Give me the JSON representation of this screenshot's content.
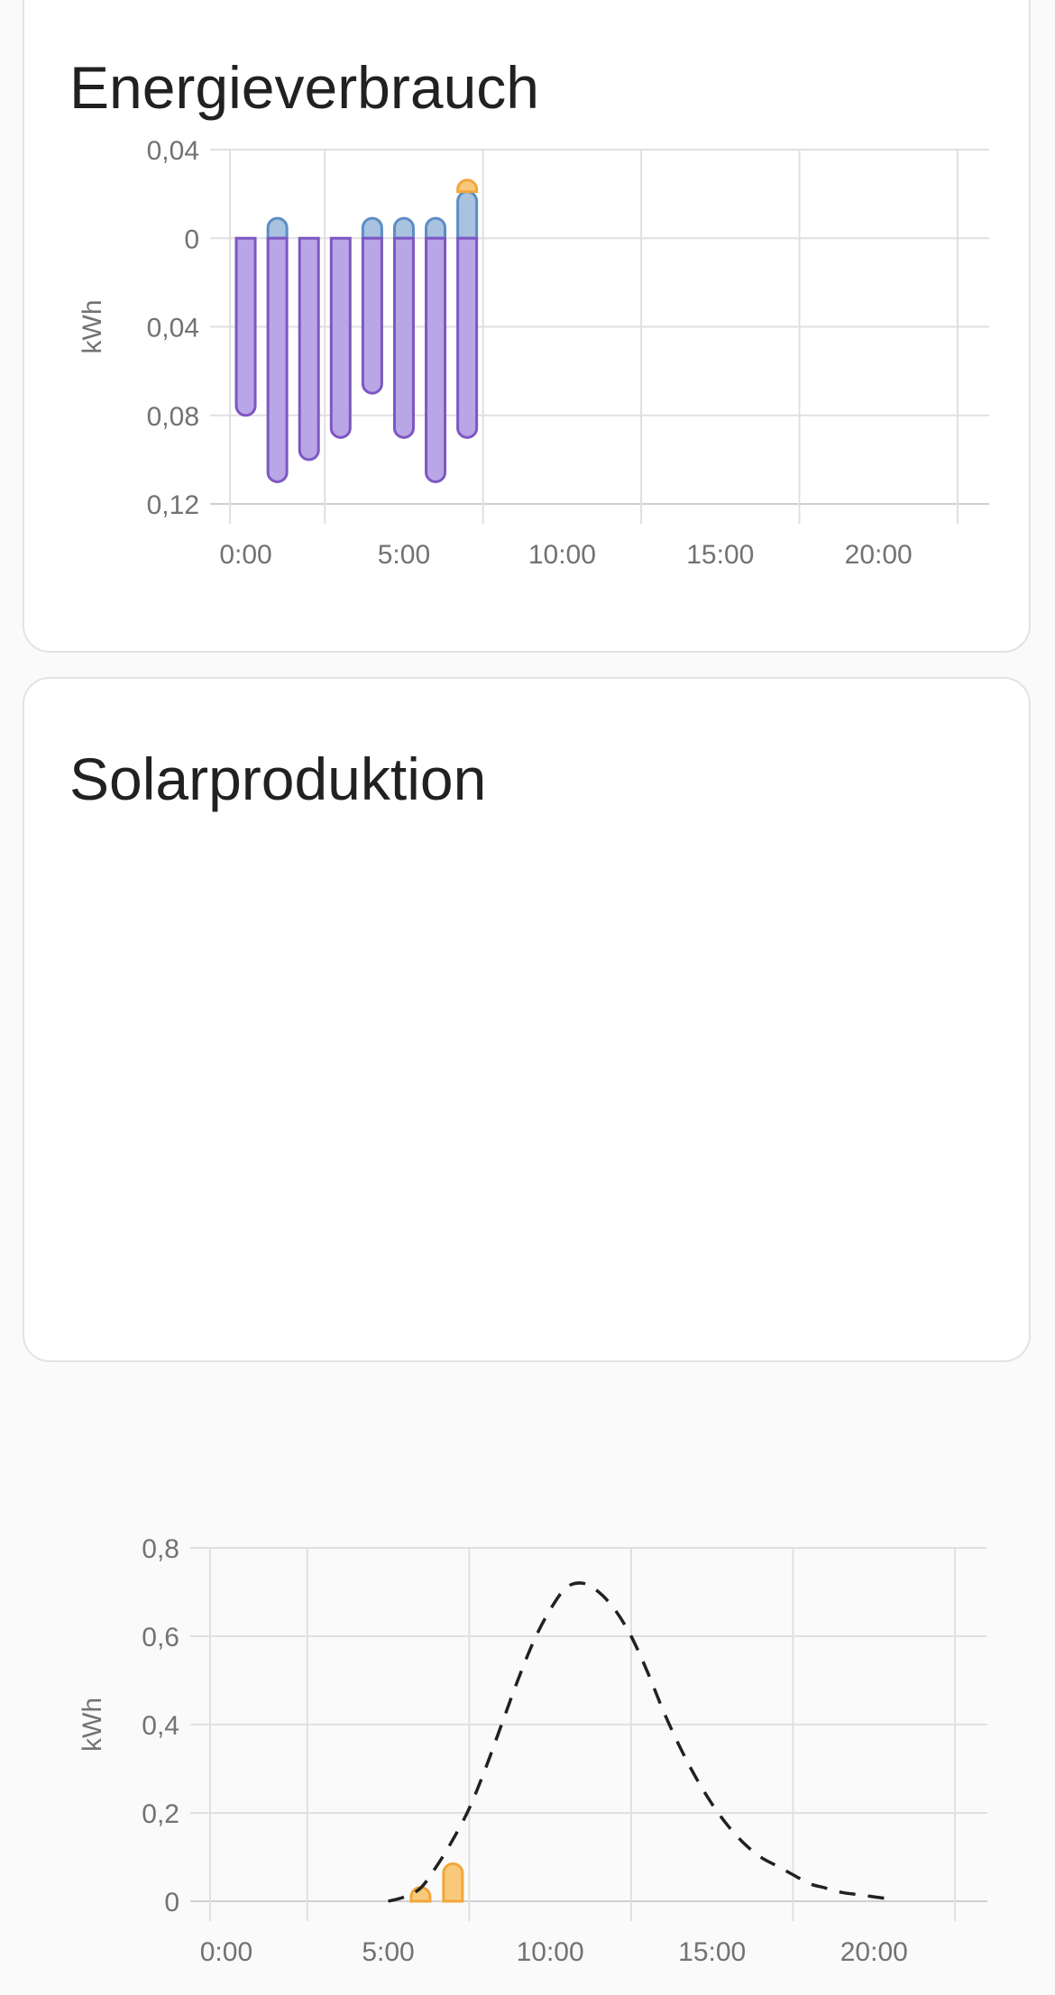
{
  "cards": [
    {
      "title": "Energieverbrauch",
      "chart_data": {
        "type": "bar",
        "ylabel": "kWh",
        "xlim": [
          0,
          24
        ],
        "ylim": [
          -0.12,
          0.04
        ],
        "y_ticks": [
          {
            "value": 0.04,
            "label": "0,04"
          },
          {
            "value": 0,
            "label": "0"
          },
          {
            "value": -0.04,
            "label": "0,04"
          },
          {
            "value": -0.08,
            "label": "0,08"
          },
          {
            "value": -0.12,
            "label": "0,12"
          }
        ],
        "x_ticks": [
          {
            "value": 0,
            "label": "0:00"
          },
          {
            "value": 5,
            "label": "5:00"
          },
          {
            "value": 10,
            "label": "10:00"
          },
          {
            "value": 15,
            "label": "15:00"
          },
          {
            "value": 20,
            "label": "20:00"
          }
        ],
        "x_gridlines": [
          0,
          3,
          8,
          13,
          18,
          23
        ],
        "grid": true,
        "x": [
          0,
          1,
          2,
          3,
          4,
          5,
          6,
          7
        ],
        "series": [
          {
            "color": "#a9c2e0",
            "stroke": "#5b8dc4",
            "values": [
              0,
              0.009,
              0,
              0,
              0.009,
              0.009,
              0.009,
              0.021
            ]
          },
          {
            "color": "#f8c97a",
            "stroke": "#f1a73a",
            "values": [
              0,
              0,
              0,
              0,
              0,
              0,
              0,
              0.002
            ]
          },
          {
            "color": "#b9a6e6",
            "stroke": "#7e57c2",
            "values": [
              -0.08,
              -0.11,
              -0.1,
              -0.09,
              -0.07,
              -0.09,
              -0.11,
              -0.09
            ]
          }
        ]
      }
    },
    {
      "title": "Solarproduktion",
      "chart_data": {
        "type": "bar",
        "ylabel": "kWh",
        "xlim": [
          0,
          24
        ],
        "ylim": [
          0,
          0.8
        ],
        "y_ticks": [
          {
            "value": 0.8,
            "label": "0,8"
          },
          {
            "value": 0.6,
            "label": "0,6"
          },
          {
            "value": 0.4,
            "label": "0,4"
          },
          {
            "value": 0.2,
            "label": "0,2"
          },
          {
            "value": 0,
            "label": "0"
          }
        ],
        "x_ticks": [
          {
            "value": 0,
            "label": "0:00"
          },
          {
            "value": 5,
            "label": "5:00"
          },
          {
            "value": 10,
            "label": "10:00"
          },
          {
            "value": 15,
            "label": "15:00"
          },
          {
            "value": 20,
            "label": "20:00"
          }
        ],
        "x_gridlines": [
          0,
          3,
          8,
          13,
          18,
          23
        ],
        "grid": true,
        "x": [
          6,
          7
        ],
        "series": [
          {
            "color": "#f8c97a",
            "stroke": "#f1a73a",
            "values": [
              0.02,
              0.085
            ]
          }
        ],
        "forecast": {
          "style": "dashed",
          "color": "#212121",
          "x": [
            5.5,
            6,
            6.5,
            7,
            7.5,
            8,
            8.5,
            9,
            9.5,
            10,
            10.5,
            11,
            11.5,
            12,
            12.5,
            13,
            13.5,
            14,
            14.5,
            15,
            15.5,
            16,
            16.5,
            17,
            17.5,
            18,
            18.5,
            19,
            19.5,
            20,
            20.5,
            21
          ],
          "y": [
            0,
            0.01,
            0.03,
            0.08,
            0.14,
            0.21,
            0.3,
            0.4,
            0.5,
            0.59,
            0.66,
            0.71,
            0.72,
            0.7,
            0.66,
            0.6,
            0.52,
            0.43,
            0.35,
            0.28,
            0.22,
            0.17,
            0.13,
            0.1,
            0.08,
            0.06,
            0.04,
            0.03,
            0.02,
            0.015,
            0.01,
            0.005
          ]
        }
      }
    }
  ]
}
